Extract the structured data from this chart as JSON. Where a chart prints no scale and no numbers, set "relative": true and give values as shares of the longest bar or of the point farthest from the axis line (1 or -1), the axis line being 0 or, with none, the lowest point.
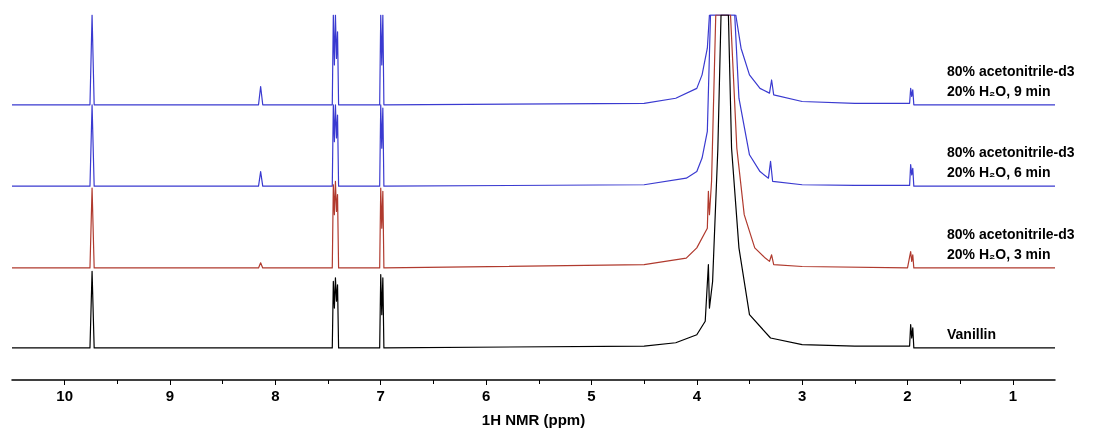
{
  "chart_data": {
    "type": "line",
    "relative": true,
    "xlabel": "1H NMR (ppm)",
    "xlim": [
      10.5,
      0.6
    ],
    "xticks": [
      10,
      {
        "value": 9.5,
        "label": null
      },
      9,
      {
        "value": 8.5,
        "label": null
      },
      8,
      {
        "value": 7.5,
        "label": null
      },
      7,
      {
        "value": 6.5,
        "label": null
      },
      6,
      {
        "value": 5.5,
        "label": null
      },
      5,
      {
        "value": 4.5,
        "label": null
      },
      4,
      {
        "value": 3.5,
        "label": null
      },
      3,
      {
        "value": 2.5,
        "label": null
      },
      2,
      {
        "value": 1.5,
        "label": null
      },
      1
    ],
    "grid": false,
    "legend": false,
    "marker": "none",
    "line_style": "solid",
    "series": [
      {
        "name": "80% acetonitrile-d3\n20% H₂O, 9 min",
        "color": "#3a3ad0",
        "x": [
          10.5,
          9.76,
          9.74,
          9.72,
          8.16,
          8.14,
          8.12,
          7.46,
          7.45,
          7.44,
          7.43,
          7.42,
          7.41,
          7.4,
          7.01,
          7.0,
          6.99,
          6.98,
          6.97,
          4.5,
          4.2,
          4.0,
          3.95,
          3.9,
          3.88,
          3.63,
          3.58,
          3.5,
          3.4,
          3.31,
          3.29,
          3.27,
          3.0,
          2.5,
          1.98,
          1.97,
          1.96,
          1.95,
          1.94,
          0.6
        ],
        "values": [
          0.754,
          0.754,
          1,
          0.754,
          0.754,
          0.804,
          0.754,
          0.754,
          1,
          0.863,
          1,
          0.881,
          0.954,
          0.754,
          0.754,
          1,
          0.863,
          1,
          0.754,
          0.758,
          0.772,
          0.799,
          0.836,
          0.909,
          1,
          1,
          0.909,
          0.836,
          0.799,
          0.786,
          0.822,
          0.781,
          0.763,
          0.758,
          0.758,
          0.799,
          0.777,
          0.795,
          0.754,
          0.754
        ]
      },
      {
        "name": "80% acetonitrile-d3\n20% H₂O, 6 min",
        "color": "#3a3ad0",
        "x": [
          10.5,
          9.76,
          9.74,
          9.72,
          8.16,
          8.14,
          8.12,
          7.46,
          7.45,
          7.44,
          7.43,
          7.42,
          7.41,
          7.4,
          7.01,
          7.0,
          6.99,
          6.98,
          6.97,
          4.5,
          4.1,
          4.0,
          3.95,
          3.9,
          3.87,
          3.64,
          3.6,
          3.5,
          3.4,
          3.32,
          3.3,
          3.28,
          3.0,
          2.5,
          1.98,
          1.97,
          1.96,
          1.95,
          1.94,
          0.6
        ],
        "values": [
          0.531,
          0.531,
          0.754,
          0.531,
          0.531,
          0.571,
          0.531,
          0.531,
          0.754,
          0.653,
          0.754,
          0.663,
          0.726,
          0.531,
          0.531,
          0.754,
          0.635,
          0.745,
          0.531,
          0.535,
          0.553,
          0.571,
          0.608,
          0.681,
          1,
          1,
          0.772,
          0.617,
          0.571,
          0.553,
          0.599,
          0.544,
          0.535,
          0.533,
          0.533,
          0.59,
          0.562,
          0.58,
          0.531,
          0.531
        ]
      },
      {
        "name": "80% acetonitrile-d3\n20% H₂O, 3 min",
        "color": "#b03a2e",
        "x": [
          10.5,
          9.76,
          9.74,
          9.72,
          8.16,
          8.14,
          8.12,
          7.46,
          7.45,
          7.44,
          7.43,
          7.42,
          7.41,
          7.4,
          7.01,
          7.0,
          6.99,
          6.98,
          6.97,
          4.5,
          4.1,
          4.0,
          3.9,
          3.89,
          3.88,
          3.86,
          3.82,
          3.68,
          3.62,
          3.55,
          3.45,
          3.35,
          3.31,
          3.29,
          3.27,
          3.0,
          2.0,
          1.97,
          1.96,
          1.95,
          1.94,
          0.6
        ],
        "values": [
          0.307,
          0.307,
          0.526,
          0.307,
          0.307,
          0.321,
          0.307,
          0.307,
          0.535,
          0.453,
          0.544,
          0.462,
          0.508,
          0.307,
          0.307,
          0.526,
          0.416,
          0.517,
          0.307,
          0.316,
          0.334,
          0.362,
          0.416,
          0.517,
          0.453,
          0.544,
          1,
          1,
          0.635,
          0.453,
          0.362,
          0.334,
          0.325,
          0.343,
          0.316,
          0.311,
          0.307,
          0.352,
          0.325,
          0.343,
          0.307,
          0.307
        ]
      },
      {
        "name": "Vanillin",
        "color": "#000000",
        "x": [
          10.5,
          9.76,
          9.74,
          9.72,
          7.46,
          7.45,
          7.44,
          7.43,
          7.42,
          7.41,
          7.4,
          7.01,
          7.0,
          6.99,
          6.98,
          6.97,
          4.5,
          4.2,
          4.0,
          3.92,
          3.89,
          3.88,
          3.85,
          3.8,
          3.77,
          3.7,
          3.67,
          3.6,
          3.5,
          3.3,
          3.0,
          2.5,
          1.98,
          1.97,
          1.96,
          1.95,
          1.94,
          0.6
        ],
        "values": [
          0.088,
          0.088,
          0.298,
          0.088,
          0.088,
          0.27,
          0.197,
          0.28,
          0.216,
          0.261,
          0.088,
          0.088,
          0.289,
          0.179,
          0.28,
          0.088,
          0.093,
          0.102,
          0.124,
          0.161,
          0.316,
          0.197,
          0.27,
          0.635,
          1,
          1,
          0.635,
          0.362,
          0.179,
          0.115,
          0.097,
          0.093,
          0.093,
          0.152,
          0.115,
          0.143,
          0.088,
          0.088
        ]
      }
    ]
  }
}
